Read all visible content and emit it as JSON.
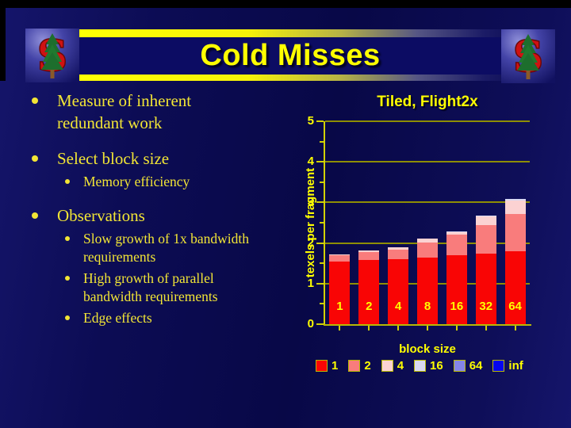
{
  "slide": {
    "title": "Cold Misses",
    "logo": "stanford-s-tree-logo",
    "bullets": [
      {
        "text": "Measure of inherent redundant work",
        "children": []
      },
      {
        "text": "Select block size",
        "children": [
          {
            "text": "Memory efficiency"
          }
        ]
      },
      {
        "text": "Observations",
        "children": [
          {
            "text": "Slow growth of 1x bandwidth requirements"
          },
          {
            "text": "High growth of parallel bandwidth requirements"
          },
          {
            "text": "Edge effects"
          }
        ]
      }
    ]
  },
  "chart_data": {
    "type": "bar",
    "stacked": true,
    "title": "Tiled, Flight2x",
    "xlabel": "block size",
    "ylabel": "texels per fragment",
    "categories": [
      "1",
      "2",
      "4",
      "8",
      "16",
      "32",
      "64"
    ],
    "series": [
      {
        "name": "1",
        "color": "#f90505",
        "values": [
          1.55,
          1.58,
          1.61,
          1.64,
          1.7,
          1.73,
          1.8
        ]
      },
      {
        "name": "2",
        "color": "#f97c7c",
        "values": [
          0.14,
          0.19,
          0.23,
          0.38,
          0.5,
          0.72,
          0.92
        ]
      },
      {
        "name": "4",
        "color": "#fbd2d2",
        "values": [
          0.03,
          0.04,
          0.06,
          0.08,
          0.07,
          0.2,
          0.33
        ]
      },
      {
        "name": "16",
        "color": "#d9d9f2",
        "values": [
          0,
          0,
          0,
          0,
          0.01,
          0.02,
          0.03
        ]
      },
      {
        "name": "64",
        "color": "#8585e8",
        "values": [
          0,
          0,
          0,
          0,
          0,
          0,
          0
        ]
      },
      {
        "name": "inf",
        "color": "#0505f0",
        "values": [
          0,
          0,
          0,
          0,
          0,
          0,
          0
        ]
      }
    ],
    "ylim": [
      0,
      5
    ],
    "yticks": [
      0,
      1,
      2,
      3,
      4,
      5
    ],
    "grid": true,
    "legend_position": "bottom",
    "colors": {
      "background": "#08084a",
      "text": "#ffff00",
      "gridline": "#8e8e04",
      "axis": "#d2d204"
    }
  }
}
